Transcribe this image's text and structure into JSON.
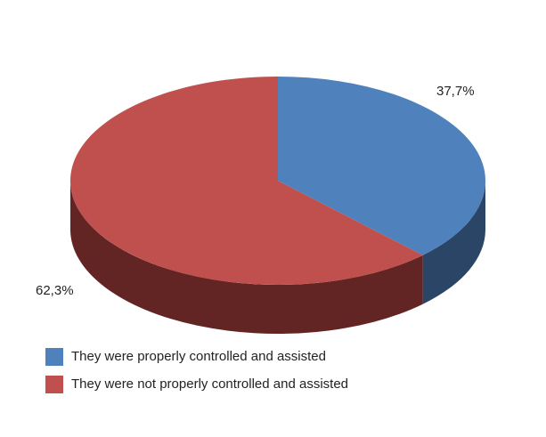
{
  "chart_data": {
    "type": "pie3d",
    "categories": [
      "They were properly controlled and assisted",
      "They were not properly controlled and assisted"
    ],
    "values": [
      37.7,
      62.3
    ],
    "value_labels": [
      "37,7%",
      "62,3%"
    ],
    "colors": [
      "#4f81bd",
      "#c0504d"
    ],
    "side_colors": [
      "#2b4566",
      "#632523"
    ],
    "legend": "bottom-left"
  }
}
